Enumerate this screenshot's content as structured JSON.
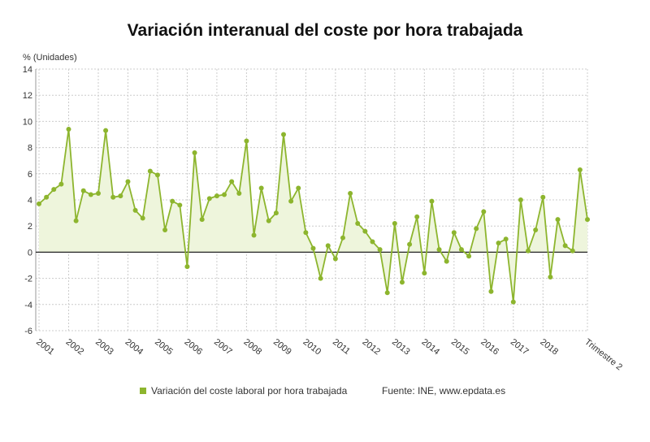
{
  "chart_data": {
    "type": "line",
    "title": "Variación interanual del coste por hora trabajada",
    "y_label": "% (Unidades)",
    "source": "Fuente: INE, www.epdata.es",
    "categories": [
      "2001",
      null,
      null,
      null,
      "2002",
      null,
      null,
      null,
      "2003",
      null,
      null,
      null,
      "2004",
      null,
      null,
      null,
      "2005",
      null,
      null,
      null,
      "2006",
      null,
      null,
      null,
      "2007",
      null,
      null,
      null,
      "2008",
      null,
      null,
      null,
      "2009",
      null,
      null,
      null,
      "2010",
      null,
      null,
      null,
      "2011",
      null,
      null,
      null,
      "2012",
      null,
      null,
      null,
      "2013",
      null,
      null,
      null,
      "2014",
      null,
      null,
      null,
      "2015",
      null,
      null,
      null,
      "2016",
      null,
      null,
      null,
      "2017",
      null,
      null,
      null,
      "2018",
      null,
      null,
      null,
      null,
      null,
      "Trimestre 2"
    ],
    "series": [
      {
        "name": "Variación del coste laboral por hora trabajada",
        "color": "#8db52e",
        "values": [
          3.7,
          4.2,
          4.8,
          5.2,
          9.4,
          2.4,
          4.7,
          4.4,
          4.5,
          9.3,
          4.2,
          4.3,
          5.4,
          3.2,
          2.6,
          6.2,
          5.9,
          1.7,
          3.9,
          3.6,
          -1.1,
          7.6,
          2.5,
          4.1,
          4.3,
          4.4,
          5.4,
          4.5,
          8.5,
          1.3,
          4.9,
          2.4,
          3.0,
          9.0,
          3.9,
          4.9,
          1.5,
          0.3,
          -2.0,
          0.5,
          -0.5,
          1.1,
          4.5,
          2.2,
          1.6,
          0.8,
          0.2,
          -3.1,
          2.2,
          -2.3,
          0.6,
          2.7,
          -1.6,
          3.9,
          0.2,
          -0.7,
          1.5,
          0.2,
          -0.3,
          1.8,
          3.1,
          -3.0,
          0.7,
          1.0,
          -3.8,
          4.0,
          0.1,
          1.7,
          4.2,
          -1.9,
          2.5,
          0.5,
          0.1,
          6.3,
          2.5
        ]
      }
    ],
    "ylim": [
      -6,
      14
    ],
    "yticks": [
      -6,
      -4,
      -2,
      0,
      2,
      4,
      6,
      8,
      10,
      12,
      14
    ],
    "grid": true,
    "area_fill": "#eef5dc"
  }
}
